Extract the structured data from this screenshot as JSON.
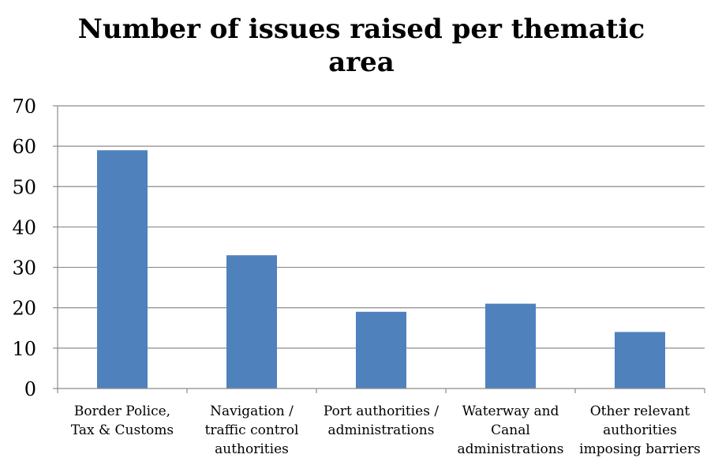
{
  "chart_data": {
    "type": "bar",
    "title": "Number of issues raised per thematic area",
    "title_lines": [
      "Number of issues raised per thematic",
      "area"
    ],
    "xlabel": "",
    "ylabel": "",
    "ylim": [
      0,
      70
    ],
    "y_ticks": [
      0,
      10,
      20,
      30,
      40,
      50,
      60,
      70
    ],
    "grid": true,
    "legend": "none",
    "bar_color": "#4f81bd",
    "categories": [
      "Border Police, Tax & Customs",
      "Navigation / traffic control authorities",
      "Port authorities / administrations",
      "Waterway and Canal administrations",
      "Other relevant authorities imposing barriers"
    ],
    "category_label_lines": [
      [
        "Border Police,",
        "Tax & Customs"
      ],
      [
        "Navigation /",
        "traffic control",
        "authorities"
      ],
      [
        "Port authorities /",
        "administrations"
      ],
      [
        "Waterway and",
        "Canal",
        "administrations"
      ],
      [
        "Other relevant",
        "authorities",
        "imposing barriers"
      ]
    ],
    "values": [
      59,
      33,
      19,
      21,
      14
    ]
  }
}
